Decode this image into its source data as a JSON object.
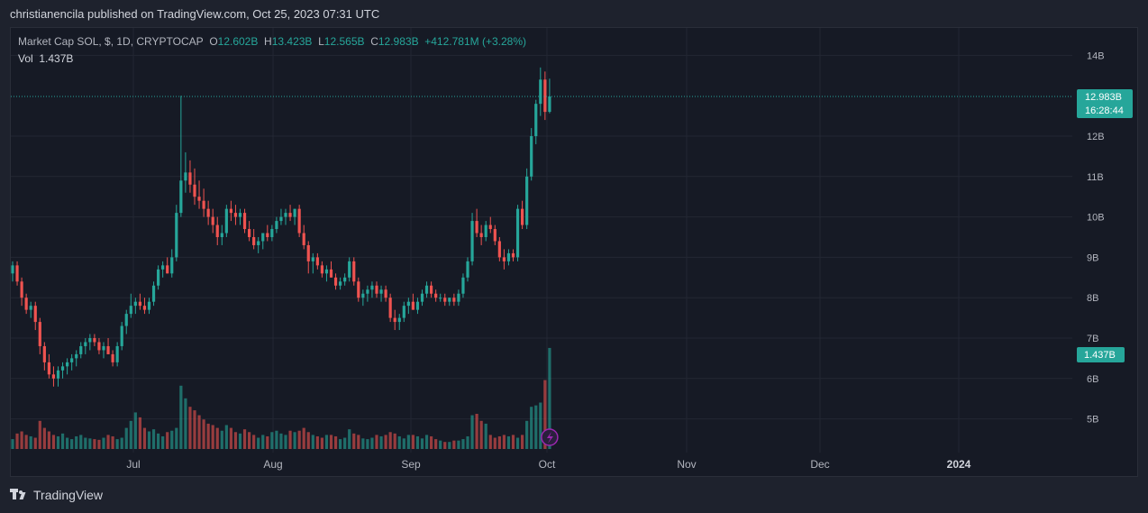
{
  "header": {
    "publish_line": "christianencila published on TradingView.com, Oct 25, 2023 07:31 UTC"
  },
  "legend": {
    "symbol": "Market Cap SOL, $, 1D, CRYPTOCAP",
    "o_label": "O",
    "o_value": "12.602B",
    "h_label": "H",
    "h_value": "13.423B",
    "l_label": "L",
    "l_value": "12.565B",
    "c_label": "C",
    "c_value": "12.983B",
    "change": "+412.781M (+3.28%)",
    "vol_label": "Vol",
    "vol_value": "1.437B"
  },
  "footer": {
    "brand": "TradingView"
  },
  "colors": {
    "up": "#26a69a",
    "down": "#ef5350",
    "background": "#161a25",
    "grid": "#232733",
    "text": "#b2b5be",
    "accent_purple": "#9c27b0"
  },
  "chart_data": {
    "type": "candlestick",
    "y_axis": {
      "labels": [
        "14B",
        "12B",
        "11B",
        "10B",
        "9B",
        "8B",
        "7B",
        "6B",
        "5B"
      ],
      "values": [
        14,
        12,
        11,
        10,
        9,
        8,
        7,
        6,
        5
      ]
    },
    "x_axis": {
      "labels": [
        "Jul",
        "Aug",
        "Sep",
        "Oct",
        "Nov",
        "Dec",
        "2024"
      ],
      "bold_label": "2024"
    },
    "last_price": {
      "label": "12.983B",
      "value": 12.983,
      "countdown": "16:28:44"
    },
    "last_volume": {
      "label": "1.437B"
    },
    "candles_ohlc_billions": [
      [
        8.6,
        8.9,
        8.4,
        8.8
      ],
      [
        8.8,
        8.9,
        8.3,
        8.4
      ],
      [
        8.4,
        8.5,
        7.8,
        8.0
      ],
      [
        8.0,
        8.1,
        7.6,
        7.7
      ],
      [
        7.7,
        7.9,
        7.5,
        7.8
      ],
      [
        7.8,
        7.9,
        7.2,
        7.4
      ],
      [
        7.4,
        7.5,
        6.6,
        6.8
      ],
      [
        6.8,
        6.9,
        6.2,
        6.4
      ],
      [
        6.4,
        6.6,
        6.0,
        6.1
      ],
      [
        6.1,
        6.3,
        5.8,
        6.0
      ],
      [
        6.0,
        6.3,
        5.8,
        6.2
      ],
      [
        6.2,
        6.4,
        6.0,
        6.3
      ],
      [
        6.3,
        6.5,
        6.1,
        6.4
      ],
      [
        6.4,
        6.6,
        6.2,
        6.5
      ],
      [
        6.5,
        6.7,
        6.3,
        6.6
      ],
      [
        6.6,
        6.9,
        6.5,
        6.8
      ],
      [
        6.8,
        7.0,
        6.6,
        6.9
      ],
      [
        6.9,
        7.1,
        6.7,
        7.0
      ],
      [
        7.0,
        7.1,
        6.8,
        6.9
      ],
      [
        6.9,
        7.0,
        6.6,
        6.7
      ],
      [
        6.7,
        6.9,
        6.5,
        6.8
      ],
      [
        6.8,
        7.0,
        6.6,
        6.6
      ],
      [
        6.6,
        6.7,
        6.3,
        6.4
      ],
      [
        6.4,
        6.9,
        6.3,
        6.8
      ],
      [
        6.8,
        7.4,
        6.7,
        7.3
      ],
      [
        7.3,
        7.7,
        7.1,
        7.6
      ],
      [
        7.6,
        8.1,
        7.5,
        7.8
      ],
      [
        7.8,
        8.0,
        7.6,
        7.9
      ],
      [
        7.9,
        8.1,
        7.7,
        7.8
      ],
      [
        7.8,
        8.0,
        7.6,
        7.7
      ],
      [
        7.7,
        8.0,
        7.6,
        7.9
      ],
      [
        7.9,
        8.4,
        7.8,
        8.3
      ],
      [
        8.3,
        8.8,
        8.2,
        8.7
      ],
      [
        8.7,
        8.9,
        8.5,
        8.8
      ],
      [
        8.8,
        9.0,
        8.6,
        8.6
      ],
      [
        8.6,
        9.2,
        8.5,
        9.0
      ],
      [
        9.0,
        10.3,
        8.9,
        10.1
      ],
      [
        10.1,
        13.0,
        10.0,
        10.9
      ],
      [
        10.9,
        11.6,
        10.6,
        11.1
      ],
      [
        11.1,
        11.4,
        10.6,
        10.8
      ],
      [
        10.8,
        11.2,
        10.3,
        10.5
      ],
      [
        10.5,
        10.9,
        10.2,
        10.4
      ],
      [
        10.4,
        10.7,
        10.0,
        10.2
      ],
      [
        10.2,
        10.4,
        9.8,
        10.0
      ],
      [
        10.0,
        10.2,
        9.6,
        9.8
      ],
      [
        9.8,
        10.0,
        9.3,
        9.5
      ],
      [
        9.5,
        9.8,
        9.3,
        9.6
      ],
      [
        9.6,
        10.3,
        9.5,
        10.2
      ],
      [
        10.2,
        10.4,
        9.9,
        10.1
      ],
      [
        10.1,
        10.3,
        9.8,
        10.0
      ],
      [
        10.0,
        10.2,
        9.8,
        10.1
      ],
      [
        10.1,
        10.2,
        9.6,
        9.7
      ],
      [
        9.7,
        9.9,
        9.4,
        9.5
      ],
      [
        9.5,
        9.7,
        9.2,
        9.3
      ],
      [
        9.3,
        9.5,
        9.1,
        9.4
      ],
      [
        9.4,
        9.6,
        9.2,
        9.6
      ],
      [
        9.6,
        9.8,
        9.4,
        9.5
      ],
      [
        9.5,
        9.8,
        9.4,
        9.7
      ],
      [
        9.7,
        10.0,
        9.6,
        9.9
      ],
      [
        9.9,
        10.2,
        9.8,
        10.0
      ],
      [
        10.0,
        10.2,
        9.8,
        10.1
      ],
      [
        10.1,
        10.3,
        9.9,
        10.0
      ],
      [
        10.0,
        10.2,
        9.8,
        10.2
      ],
      [
        10.2,
        10.3,
        9.5,
        9.6
      ],
      [
        9.6,
        9.8,
        9.2,
        9.3
      ],
      [
        9.3,
        9.4,
        8.6,
        8.9
      ],
      [
        8.9,
        9.1,
        8.6,
        9.0
      ],
      [
        9.0,
        9.1,
        8.7,
        8.8
      ],
      [
        8.8,
        8.9,
        8.5,
        8.6
      ],
      [
        8.6,
        8.8,
        8.4,
        8.7
      ],
      [
        8.7,
        8.9,
        8.5,
        8.5
      ],
      [
        8.5,
        8.6,
        8.2,
        8.3
      ],
      [
        8.3,
        8.5,
        8.2,
        8.4
      ],
      [
        8.4,
        8.6,
        8.3,
        8.5
      ],
      [
        8.5,
        9.0,
        8.4,
        8.9
      ],
      [
        8.9,
        9.0,
        8.3,
        8.4
      ],
      [
        8.4,
        8.5,
        7.9,
        8.0
      ],
      [
        8.0,
        8.2,
        7.8,
        8.1
      ],
      [
        8.1,
        8.3,
        7.9,
        8.2
      ],
      [
        8.2,
        8.4,
        8.0,
        8.3
      ],
      [
        8.3,
        8.4,
        8.0,
        8.1
      ],
      [
        8.1,
        8.3,
        7.9,
        8.2
      ],
      [
        8.2,
        8.3,
        7.9,
        8.0
      ],
      [
        8.0,
        8.1,
        7.4,
        7.5
      ],
      [
        7.5,
        7.7,
        7.2,
        7.4
      ],
      [
        7.4,
        7.6,
        7.2,
        7.5
      ],
      [
        7.5,
        7.9,
        7.4,
        7.8
      ],
      [
        7.8,
        8.0,
        7.6,
        7.9
      ],
      [
        7.9,
        8.1,
        7.7,
        7.7
      ],
      [
        7.7,
        8.0,
        7.6,
        7.9
      ],
      [
        7.9,
        8.2,
        7.8,
        8.1
      ],
      [
        8.1,
        8.4,
        8.0,
        8.3
      ],
      [
        8.3,
        8.4,
        8.0,
        8.1
      ],
      [
        8.1,
        8.2,
        7.9,
        8.0
      ],
      [
        8.0,
        8.1,
        7.9,
        8.0
      ],
      [
        8.0,
        8.1,
        7.8,
        7.9
      ],
      [
        7.9,
        8.0,
        7.8,
        8.0
      ],
      [
        8.0,
        8.1,
        7.8,
        7.9
      ],
      [
        7.9,
        8.2,
        7.8,
        8.1
      ],
      [
        8.1,
        8.6,
        8.0,
        8.5
      ],
      [
        8.5,
        9.0,
        8.4,
        8.9
      ],
      [
        8.9,
        10.1,
        8.8,
        9.9
      ],
      [
        9.9,
        10.2,
        9.5,
        9.6
      ],
      [
        9.6,
        9.8,
        9.3,
        9.5
      ],
      [
        9.5,
        9.9,
        9.4,
        9.8
      ],
      [
        9.8,
        10.0,
        9.6,
        9.7
      ],
      [
        9.7,
        9.8,
        9.3,
        9.4
      ],
      [
        9.4,
        9.5,
        8.9,
        9.0
      ],
      [
        9.0,
        9.2,
        8.7,
        8.9
      ],
      [
        8.9,
        9.2,
        8.8,
        9.1
      ],
      [
        9.1,
        9.2,
        8.9,
        9.0
      ],
      [
        9.0,
        10.3,
        8.9,
        10.2
      ],
      [
        10.2,
        10.4,
        9.7,
        9.8
      ],
      [
        9.8,
        11.2,
        9.7,
        11.0
      ],
      [
        11.0,
        12.2,
        10.9,
        12.0
      ],
      [
        12.0,
        12.9,
        11.8,
        12.8
      ],
      [
        12.8,
        13.7,
        12.5,
        13.4
      ],
      [
        13.4,
        13.6,
        12.4,
        12.6
      ],
      [
        12.602,
        13.423,
        12.565,
        12.983
      ]
    ],
    "volume_billions": [
      0.14,
      0.22,
      0.25,
      0.2,
      0.18,
      0.16,
      0.4,
      0.3,
      0.25,
      0.2,
      0.18,
      0.22,
      0.16,
      0.14,
      0.18,
      0.2,
      0.16,
      0.15,
      0.14,
      0.13,
      0.16,
      0.2,
      0.18,
      0.14,
      0.16,
      0.3,
      0.4,
      0.52,
      0.45,
      0.3,
      0.25,
      0.28,
      0.22,
      0.18,
      0.24,
      0.26,
      0.3,
      0.9,
      0.72,
      0.6,
      0.55,
      0.48,
      0.42,
      0.36,
      0.34,
      0.3,
      0.26,
      0.34,
      0.3,
      0.24,
      0.22,
      0.28,
      0.24,
      0.2,
      0.16,
      0.2,
      0.18,
      0.24,
      0.26,
      0.22,
      0.2,
      0.26,
      0.24,
      0.26,
      0.3,
      0.24,
      0.2,
      0.18,
      0.16,
      0.2,
      0.2,
      0.18,
      0.14,
      0.16,
      0.28,
      0.22,
      0.2,
      0.15,
      0.14,
      0.16,
      0.2,
      0.18,
      0.2,
      0.24,
      0.22,
      0.18,
      0.15,
      0.2,
      0.2,
      0.18,
      0.15,
      0.2,
      0.18,
      0.14,
      0.12,
      0.1,
      0.1,
      0.12,
      0.12,
      0.14,
      0.18,
      0.48,
      0.5,
      0.4,
      0.36,
      0.2,
      0.16,
      0.18,
      0.2,
      0.18,
      0.2,
      0.16,
      0.2,
      0.4,
      0.6,
      0.62,
      0.66,
      0.98,
      1.437
    ]
  }
}
